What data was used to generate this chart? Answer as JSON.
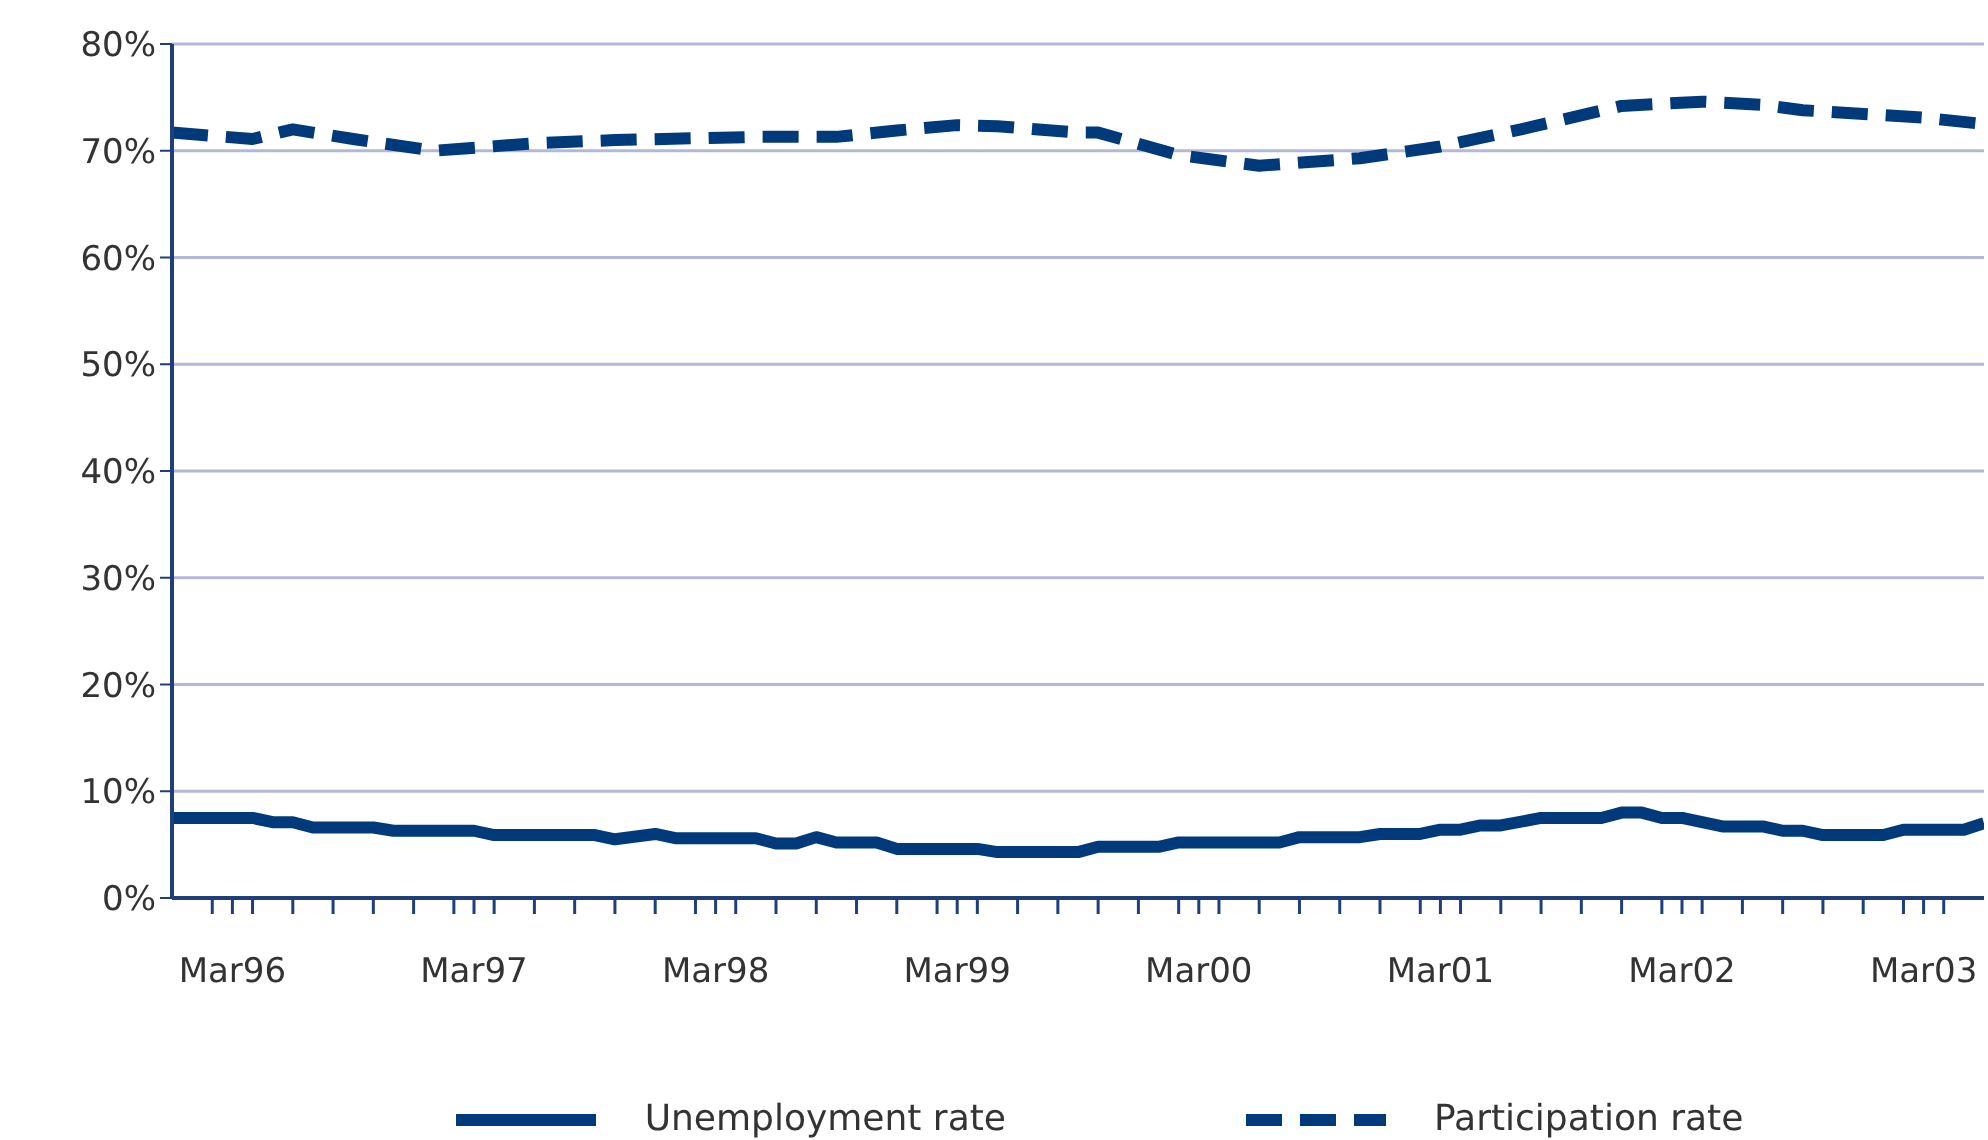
{
  "chart_data": {
    "type": "line",
    "xlim": [
      "1995-12",
      "2003-06"
    ],
    "xticks": [
      {
        "value": "1996-03",
        "label": "Mar96"
      },
      {
        "value": "1997-03",
        "label": "Mar97"
      },
      {
        "value": "1998-03",
        "label": "Mar98"
      },
      {
        "value": "1999-03",
        "label": "Mar99"
      },
      {
        "value": "2000-03",
        "label": "Mar00"
      },
      {
        "value": "2001-03",
        "label": "Mar01"
      },
      {
        "value": "2002-03",
        "label": "Mar02"
      },
      {
        "value": "2003-03",
        "label": "Mar03"
      },
      {
        "value": "1996-02",
        "label": null
      },
      {
        "value": "1996-04",
        "label": null
      },
      {
        "value": "1996-06",
        "label": null
      },
      {
        "value": "1996-08",
        "label": null
      },
      {
        "value": "1996-10",
        "label": null
      },
      {
        "value": "1996-12",
        "label": null
      },
      {
        "value": "1997-02",
        "label": null
      },
      {
        "value": "1997-04",
        "label": null
      },
      {
        "value": "1997-06",
        "label": null
      },
      {
        "value": "1997-08",
        "label": null
      },
      {
        "value": "1997-10",
        "label": null
      },
      {
        "value": "1997-12",
        "label": null
      },
      {
        "value": "1998-02",
        "label": null
      },
      {
        "value": "1998-04",
        "label": null
      },
      {
        "value": "1998-06",
        "label": null
      },
      {
        "value": "1998-08",
        "label": null
      },
      {
        "value": "1998-10",
        "label": null
      },
      {
        "value": "1998-12",
        "label": null
      },
      {
        "value": "1999-02",
        "label": null
      },
      {
        "value": "1999-04",
        "label": null
      },
      {
        "value": "1999-06",
        "label": null
      },
      {
        "value": "1999-08",
        "label": null
      },
      {
        "value": "1999-10",
        "label": null
      },
      {
        "value": "1999-12",
        "label": null
      },
      {
        "value": "2000-02",
        "label": null
      },
      {
        "value": "2000-04",
        "label": null
      },
      {
        "value": "2000-06",
        "label": null
      },
      {
        "value": "2000-08",
        "label": null
      },
      {
        "value": "2000-10",
        "label": null
      },
      {
        "value": "2000-12",
        "label": null
      },
      {
        "value": "2001-02",
        "label": null
      },
      {
        "value": "2001-04",
        "label": null
      },
      {
        "value": "2001-06",
        "label": null
      },
      {
        "value": "2001-08",
        "label": null
      },
      {
        "value": "2001-10",
        "label": null
      },
      {
        "value": "2001-12",
        "label": null
      },
      {
        "value": "2002-02",
        "label": null
      },
      {
        "value": "2002-04",
        "label": null
      },
      {
        "value": "2002-06",
        "label": null
      },
      {
        "value": "2002-08",
        "label": null
      },
      {
        "value": "2002-10",
        "label": null
      },
      {
        "value": "2002-12",
        "label": null
      },
      {
        "value": "2003-02",
        "label": null
      },
      {
        "value": "2003-04",
        "label": null
      }
    ],
    "ylim": [
      0,
      80
    ],
    "yticks": [
      {
        "value": 0,
        "label": "0%"
      },
      {
        "value": 10,
        "label": "10%"
      },
      {
        "value": 20,
        "label": "20%"
      },
      {
        "value": 30,
        "label": "30%"
      },
      {
        "value": 40,
        "label": "40%"
      },
      {
        "value": 50,
        "label": "50%"
      },
      {
        "value": 60,
        "label": "60%"
      },
      {
        "value": 70,
        "label": "70%"
      },
      {
        "value": 80,
        "label": "80%"
      }
    ],
    "grid": "y",
    "legend": "bottom",
    "marker": "none",
    "series": [
      {
        "name": "Unemployment rate",
        "color": "#003a7a",
        "line_style": "solid",
        "x": [
          "1995-12",
          "1996-04",
          "1996-05",
          "1996-06",
          "1996-07",
          "1996-10",
          "1996-11",
          "1997-03",
          "1997-04",
          "1997-09",
          "1997-10",
          "1997-12",
          "1998-01",
          "1998-05",
          "1998-06",
          "1998-07",
          "1998-08",
          "1998-09",
          "1998-11",
          "1998-12",
          "1999-04",
          "1999-05",
          "1999-09",
          "1999-10",
          "2000-01",
          "2000-02",
          "2000-07",
          "2000-08",
          "2000-11",
          "2000-12",
          "2001-02",
          "2001-03",
          "2001-04",
          "2001-05",
          "2001-06",
          "2001-08",
          "2001-11",
          "2001-12",
          "2002-01",
          "2002-02",
          "2002-03",
          "2002-05",
          "2002-07",
          "2002-08",
          "2002-09",
          "2002-10",
          "2003-01",
          "2003-02",
          "2003-05",
          "2003-06"
        ],
        "values": [
          7.5,
          7.5,
          7.1,
          7.1,
          6.6,
          6.6,
          6.3,
          6.3,
          5.9,
          5.9,
          5.5,
          6.0,
          5.6,
          5.6,
          5.1,
          5.1,
          5.7,
          5.2,
          5.2,
          4.6,
          4.6,
          4.3,
          4.3,
          4.8,
          4.8,
          5.2,
          5.2,
          5.7,
          5.7,
          6.0,
          6.0,
          6.4,
          6.4,
          6.8,
          6.8,
          7.5,
          7.5,
          8.0,
          8.0,
          7.5,
          7.5,
          6.7,
          6.7,
          6.3,
          6.3,
          5.9,
          5.9,
          6.4,
          6.4,
          7.0
        ]
      },
      {
        "name": "Participation rate",
        "color": "#003a7a",
        "line_style": "dashed",
        "x": [
          "1995-12",
          "1996-04",
          "1996-06",
          "1996-09",
          "1997-01",
          "1997-06",
          "1997-10",
          "1998-05",
          "1998-09",
          "1998-12",
          "1999-03",
          "1999-05",
          "1999-09",
          "1999-10",
          "2000-02",
          "2000-06",
          "2000-11",
          "2001-03",
          "2001-07",
          "2001-12",
          "2002-04",
          "2002-07",
          "2002-09",
          "2003-03",
          "2003-06"
        ],
        "values": [
          71.7,
          71.1,
          72.0,
          71.1,
          70.0,
          70.7,
          71.0,
          71.3,
          71.3,
          71.9,
          72.4,
          72.3,
          71.7,
          71.7,
          69.6,
          68.6,
          69.3,
          70.4,
          72.0,
          74.2,
          74.6,
          74.3,
          73.8,
          73.1,
          72.5
        ]
      }
    ]
  }
}
